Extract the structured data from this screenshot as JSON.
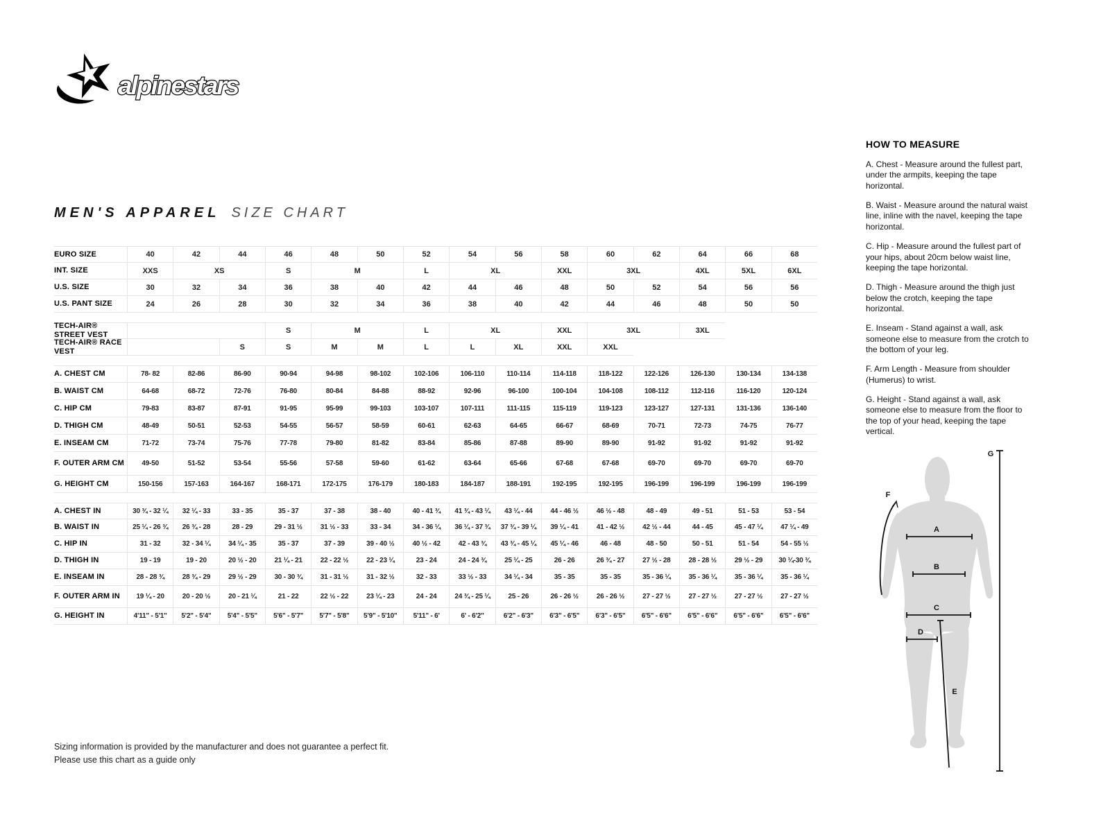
{
  "brand": {
    "logo_text": "alpinestars"
  },
  "title": {
    "primary": "MEN'S APPAREL",
    "secondary": "SIZE CHART"
  },
  "size_table": {
    "sections": [
      {
        "name": "sizes",
        "rows": [
          {
            "label": "EURO SIZE",
            "cells": [
              "40",
              "42",
              "44",
              "46",
              "48",
              "50",
              "52",
              "54",
              "56",
              "58",
              "60",
              "62",
              "64",
              "66",
              "68"
            ]
          },
          {
            "label": "INT. SIZE",
            "cells": [
              {
                "t": "XXS"
              },
              {
                "t": "XS",
                "span": 2
              },
              {
                "t": "S"
              },
              {
                "t": "M",
                "span": 2
              },
              {
                "t": "L"
              },
              {
                "t": "XL",
                "span": 2
              },
              {
                "t": "XXL"
              },
              {
                "t": "3XL",
                "span": 2
              },
              {
                "t": "4XL"
              },
              {
                "t": "5XL"
              },
              {
                "t": "6XL"
              }
            ]
          },
          {
            "label": "U.S. SIZE",
            "cells": [
              "30",
              "32",
              "34",
              "36",
              "38",
              "40",
              "42",
              "44",
              "46",
              "48",
              "50",
              "52",
              "54",
              "56",
              "56"
            ]
          },
          {
            "label": "U.S. PANT SIZE",
            "cells": [
              "24",
              "26",
              "28",
              "30",
              "32",
              "34",
              "36",
              "38",
              "40",
              "42",
              "44",
              "46",
              "48",
              "50",
              "50"
            ]
          }
        ]
      },
      {
        "name": "vests",
        "rows": [
          {
            "label": "TECH-AIR® STREET VEST",
            "cells": [
              {
                "t": "",
                "span": 3
              },
              {
                "t": "S"
              },
              {
                "t": "M",
                "span": 2
              },
              {
                "t": "L"
              },
              {
                "t": "XL",
                "span": 2
              },
              {
                "t": "XXL"
              },
              {
                "t": "3XL",
                "span": 2
              },
              {
                "t": "3XL"
              },
              {
                "t": "",
                "span": 2,
                "void": true
              }
            ]
          },
          {
            "label": "TECH-AIR® RACE VEST",
            "cells": [
              {
                "t": "",
                "span": 2
              },
              {
                "t": "S"
              },
              {
                "t": "S"
              },
              {
                "t": "M"
              },
              {
                "t": "M"
              },
              {
                "t": "L"
              },
              {
                "t": "L"
              },
              {
                "t": "XL"
              },
              {
                "t": "XXL"
              },
              {
                "t": "XXL"
              },
              {
                "t": "",
                "span": 4,
                "void": true
              }
            ]
          }
        ]
      },
      {
        "name": "cm",
        "rows": [
          {
            "label": "A. CHEST CM",
            "cells": [
              "78- 82",
              "82-86",
              "86-90",
              "90-94",
              "94-98",
              "98-102",
              "102-106",
              "106-110",
              "110-114",
              "114-118",
              "118-122",
              "122-126",
              "126-130",
              "130-134",
              "134-138"
            ]
          },
          {
            "label": "B. WAIST CM",
            "cells": [
              "64-68",
              "68-72",
              "72-76",
              "76-80",
              "80-84",
              "84-88",
              "88-92",
              "92-96",
              "96-100",
              "100-104",
              "104-108",
              "108-112",
              "112-116",
              "116-120",
              "120-124"
            ]
          },
          {
            "label": "C. HIP CM",
            "cells": [
              "79-83",
              "83-87",
              "87-91",
              "91-95",
              "95-99",
              "99-103",
              "103-107",
              "107-111",
              "111-115",
              "115-119",
              "119-123",
              "123-127",
              "127-131",
              "131-136",
              "136-140"
            ]
          },
          {
            "label": "D. THIGH CM",
            "cells": [
              "48-49",
              "50-51",
              "52-53",
              "54-55",
              "56-57",
              "58-59",
              "60-61",
              "62-63",
              "64-65",
              "66-67",
              "68-69",
              "70-71",
              "72-73",
              "74-75",
              "76-77"
            ]
          },
          {
            "label": "E. INSEAM CM",
            "cells": [
              "71-72",
              "73-74",
              "75-76",
              "77-78",
              "79-80",
              "81-82",
              "83-84",
              "85-86",
              "87-88",
              "89-90",
              "89-90",
              "91-92",
              "91-92",
              "91-92",
              "91-92"
            ]
          },
          {
            "label": "F. OUTER ARM CM",
            "cells": [
              "49-50",
              "51-52",
              "53-54",
              "55-56",
              "57-58",
              "59-60",
              "61-62",
              "63-64",
              "65-66",
              "67-68",
              "67-68",
              "69-70",
              "69-70",
              "69-70",
              "69-70"
            ]
          },
          {
            "label": "G. HEIGHT CM",
            "cells": [
              "150-156",
              "157-163",
              "164-167",
              "168-171",
              "172-175",
              "176-179",
              "180-183",
              "184-187",
              "188-191",
              "192-195",
              "192-195",
              "196-199",
              "196-199",
              "196-199",
              "196-199"
            ]
          }
        ]
      },
      {
        "name": "in",
        "rows": [
          {
            "label": "A. CHEST IN",
            "cells": [
              "30 ¾ - 32 ¼",
              "32 ¼ - 33",
              "33  - 35",
              "35  - 37",
              "37 - 38",
              "38  - 40",
              "40  - 41 ¾",
              "41 ¾ - 43 ¼",
              "43 ¼ - 44",
              "44  - 46 ½",
              "46 ½ - 48",
              "48 - 49",
              "49  - 51",
              "51 - 53",
              "53  - 54"
            ]
          },
          {
            "label": "B. WAIST IN",
            "cells": [
              "25 ¼ - 26 ¾",
              "26 ¾ - 28",
              "28  - 29",
              "29  - 31 ½",
              "31 ½ - 33",
              "33  - 34",
              "34  - 36 ¼",
              "36 ¼ - 37 ¾",
              "37 ¾ - 39 ¼",
              "39 ¼ - 41",
              "41 - 42 ½",
              "42 ½ - 44",
              "44  - 45",
              "45  - 47 ¼",
              "47 ¼ - 49"
            ]
          },
          {
            "label": "C. HIP IN",
            "cells": [
              "31  - 32",
              "32  - 34 ¼",
              "34 ¼ - 35",
              "35  - 37",
              "37  - 39",
              "39 - 40 ½",
              "40 ½ - 42",
              "42  - 43 ¾",
              "43 ¾ - 45 ¼",
              "45 ¼ - 46",
              "46  - 48",
              "48  - 50",
              "50 - 51",
              "51  - 54",
              "54  - 55 ½"
            ]
          },
          {
            "label": "D. THIGH IN",
            "cells": [
              "19  - 19",
              "19  - 20",
              "20 ½ - 20",
              "21 ¼ - 21",
              "22 - 22 ½",
              "22  - 23 ¼",
              "23  - 24",
              "24  - 24 ¾",
              "25 ¼ - 25",
              "26 - 26",
              "26 ¾ - 27",
              "27 ½ - 28",
              "28  - 28 ½",
              "29 ½ - 29",
              "30 ¼-30 ¾"
            ]
          },
          {
            "label": "E. INSEAM IN",
            "cells": [
              "28 - 28 ¾",
              "28 ¾ - 29",
              "29 ½ - 29",
              "30  - 30 ¾",
              "31  - 31 ½",
              "31  - 32 ½",
              "32  - 33",
              "33 ½ - 33",
              "34 ¼ - 34",
              "35 - 35",
              "35 - 35",
              "35  - 36 ¼",
              "35  - 36 ¼",
              "35  - 36 ¼",
              "35  - 36 ¼"
            ]
          },
          {
            "label": "F. OUTER ARM IN",
            "cells": [
              "19 ¼ - 20",
              "20  - 20 ½",
              "20  - 21 ¼",
              "21  - 22",
              "22 ½ - 22",
              "23 ¼ - 23",
              "24 - 24",
              "24 ¾ - 25 ¼",
              "25  - 26",
              "26  - 26 ½",
              "26  - 26 ½",
              "27  - 27 ½",
              "27  - 27 ½",
              "27  - 27 ½",
              "27  - 27 ½"
            ]
          },
          {
            "label": "G. HEIGHT IN",
            "cells": [
              "4'11\" - 5'1\"",
              "5'2\" - 5'4\"",
              "5'4\" - 5'5\"",
              "5'6\" - 5'7\"",
              "5'7\" - 5'8\"",
              "5'9\" - 5'10\"",
              "5'11\" - 6'",
              "6' - 6'2\"",
              "6'2\" - 6'3\"",
              "6'3\" - 6'5\"",
              "6'3\" - 6'5\"",
              "6'5\" - 6'6\"",
              "6'5\" - 6'6\"",
              "6'5\" - 6'6\"",
              "6'5\" - 6'6\""
            ]
          }
        ]
      }
    ]
  },
  "how_to_measure": {
    "heading": "HOW TO MEASURE",
    "items": [
      "A. Chest - Measure around the fullest part, under the armpits, keeping the tape horizontal.",
      "B. Waist - Measure around the natural waist line, inline with the navel, keeping the tape horizontal.",
      "C. Hip - Measure around the fullest part of your hips, about 20cm below waist line, keeping the tape horizontal.",
      "D. Thigh - Measure around the thigh just below the crotch, keeping the tape horizontal.",
      "E. Inseam - Stand against a wall, ask someone else to measure from the crotch to the bottom of your leg.",
      "F. Arm Length - Measure from shoulder (Humerus) to wrist.",
      "G. Height - Stand against a wall, ask someone else to measure from the floor to the top of your head, keeping the tape vertical."
    ]
  },
  "diagram": {
    "a": "A",
    "b": "B",
    "c": "C",
    "d": "D",
    "e": "E",
    "f": "F",
    "g": "G"
  },
  "footer": {
    "line1": "Sizing information is provided by the manufacturer and does not guarantee a perfect fit.",
    "line2": "Please use this chart as a guide only"
  },
  "colors": {
    "silhouette": "#dadada",
    "border": "#e4e4e4",
    "ink": "#111111"
  }
}
